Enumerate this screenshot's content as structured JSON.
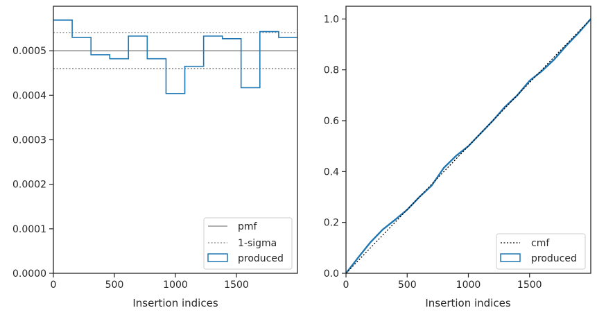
{
  "chart_data": [
    {
      "type": "step-histogram",
      "xlabel": "Insertion indices",
      "ylabel": "",
      "xlim": [
        0,
        2000
      ],
      "ylim": [
        0,
        0.0006
      ],
      "xticks": [
        "0",
        "500",
        "1000",
        "1500"
      ],
      "yticks": [
        "0.0000",
        "0.0001",
        "0.0002",
        "0.0003",
        "0.0004",
        "0.0005"
      ],
      "pmf": 0.0005,
      "sigma_band": [
        0.00046,
        0.000541
      ],
      "bin_edges": [
        0,
        154,
        308,
        462,
        615,
        769,
        923,
        1077,
        1231,
        1385,
        1538,
        1692,
        1846,
        2000
      ],
      "produced": [
        0.000569,
        0.00053,
        0.000491,
        0.000482,
        0.000533,
        0.000482,
        0.000404,
        0.000465,
        0.000533,
        0.000527,
        0.000417,
        0.000543,
        0.00053
      ],
      "legend": {
        "position": "lower right",
        "entries": [
          {
            "label": "pmf",
            "style": "solid",
            "color": "#808080"
          },
          {
            "label": "1-sigma",
            "style": "dotted",
            "color": "#808080"
          },
          {
            "label": "produced",
            "style": "box",
            "color": "#1f77b4"
          }
        ]
      },
      "grid": false
    },
    {
      "type": "line",
      "xlabel": "Insertion indices",
      "ylabel": "",
      "xlim": [
        0,
        2000
      ],
      "ylim": [
        0,
        1.05
      ],
      "xticks": [
        "0",
        "500",
        "1000",
        "1500"
      ],
      "yticks": [
        "0.0",
        "0.2",
        "0.4",
        "0.6",
        "0.8",
        "1.0"
      ],
      "cmf": {
        "x": [
          0,
          2000
        ],
        "y": [
          0,
          1
        ]
      },
      "produced": {
        "x": [
          0,
          100,
          200,
          300,
          400,
          500,
          600,
          700,
          800,
          900,
          1000,
          1100,
          1200,
          1300,
          1400,
          1500,
          1600,
          1700,
          1800,
          1900,
          2000
        ],
        "y": [
          0,
          0.062,
          0.122,
          0.172,
          0.21,
          0.25,
          0.3,
          0.345,
          0.415,
          0.462,
          0.5,
          0.55,
          0.6,
          0.655,
          0.7,
          0.757,
          0.795,
          0.84,
          0.895,
          0.945,
          1.0
        ]
      },
      "legend": {
        "position": "lower right",
        "entries": [
          {
            "label": "cmf",
            "style": "dotted",
            "color": "#000000"
          },
          {
            "label": "produced",
            "style": "box",
            "color": "#1f77b4"
          }
        ]
      },
      "grid": false
    }
  ]
}
